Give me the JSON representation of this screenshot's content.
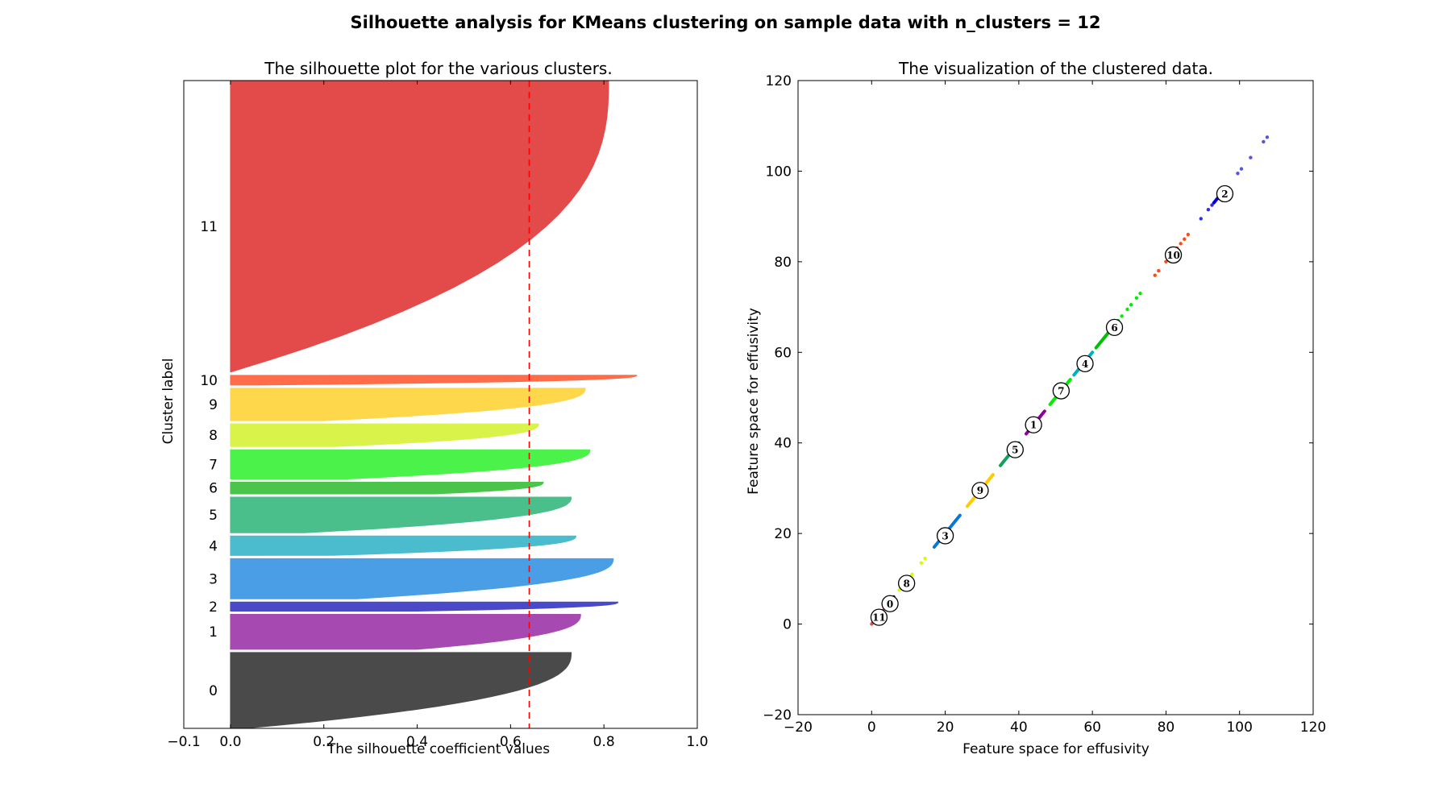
{
  "figure": {
    "title": "Silhouette analysis for KMeans clustering on sample data with n_clusters = 12"
  },
  "chart_data": [
    {
      "type": "area",
      "title": "The silhouette plot for the various clusters.",
      "xlabel": "The silhouette coefficient values",
      "ylabel": "Cluster label",
      "xlim": [
        -0.1,
        1.0
      ],
      "xticks": [
        "−0.1",
        "0.0",
        "0.2",
        "0.4",
        "0.6",
        "0.8",
        "1.0"
      ],
      "yticks": "none",
      "average_silhouette": 0.64,
      "average_line_color": "#ff0000",
      "clusters": [
        {
          "label": "0",
          "band": [
            0.0,
            0.117
          ],
          "max": 0.73,
          "min": 0.03,
          "color": "#4a4a4a"
        },
        {
          "label": "1",
          "band": [
            0.122,
            0.176
          ],
          "max": 0.75,
          "min": 0.4,
          "color": "#a64ab2"
        },
        {
          "label": "2",
          "band": [
            0.181,
            0.195
          ],
          "max": 0.83,
          "min": 0.4,
          "color": "#4a4ac9"
        },
        {
          "label": "3",
          "band": [
            0.2,
            0.262
          ],
          "max": 0.82,
          "min": 0.27,
          "color": "#4a9ee6"
        },
        {
          "label": "4",
          "band": [
            0.267,
            0.297
          ],
          "max": 0.74,
          "min": 0.22,
          "color": "#4abccd"
        },
        {
          "label": "5",
          "band": [
            0.302,
            0.357
          ],
          "max": 0.73,
          "min": 0.16,
          "color": "#4abf8c"
        },
        {
          "label": "6",
          "band": [
            0.362,
            0.38
          ],
          "max": 0.67,
          "min": 0.44,
          "color": "#4ac44a"
        },
        {
          "label": "7",
          "band": [
            0.385,
            0.43
          ],
          "max": 0.77,
          "min": 0.25,
          "color": "#4af24a"
        },
        {
          "label": "8",
          "band": [
            0.435,
            0.47
          ],
          "max": 0.66,
          "min": 0.22,
          "color": "#daf34a"
        },
        {
          "label": "9",
          "band": [
            0.475,
            0.525
          ],
          "max": 0.76,
          "min": 0.2,
          "color": "#fed84a"
        },
        {
          "label": "10",
          "band": [
            0.53,
            0.545
          ],
          "max": 0.87,
          "min": 0.06,
          "color": "#ff6c4a"
        },
        {
          "label": "11",
          "band": [
            0.55,
            1.0
          ],
          "max": 0.81,
          "min": 0.0,
          "color": "#e34a4a"
        }
      ]
    },
    {
      "type": "scatter",
      "title": "The visualization of the clustered data.",
      "xlabel": "Feature space for effusivity",
      "ylabel": "Feature space for effusivity",
      "xlim": [
        -20,
        120
      ],
      "ylim": [
        -20,
        120
      ],
      "xticks": [
        "−20",
        "0",
        "20",
        "40",
        "60",
        "80",
        "100",
        "120"
      ],
      "yticks": [
        "−20",
        "0",
        "20",
        "40",
        "60",
        "80",
        "100",
        "120"
      ],
      "segments": [
        {
          "cluster": "11",
          "x": [
            0,
            3
          ],
          "color": "#e34a4a"
        },
        {
          "cluster": "0",
          "x": [
            4,
            6
          ],
          "color": "#000000"
        },
        {
          "cluster": "8",
          "x": [
            7.5,
            11
          ],
          "color": "#d0ff00"
        },
        {
          "cluster": "3",
          "x": [
            17,
            24
          ],
          "color": "#0a78d0"
        },
        {
          "cluster": "9",
          "x": [
            26,
            33
          ],
          "color": "#ffcc00"
        },
        {
          "cluster": "5",
          "x": [
            35,
            40
          ],
          "color": "#11a060"
        },
        {
          "cluster": "1",
          "x": [
            42,
            47
          ],
          "color": "#8c00a0"
        },
        {
          "cluster": "7",
          "x": [
            48.5,
            54
          ],
          "color": "#00ee00"
        },
        {
          "cluster": "4",
          "x": [
            55,
            60
          ],
          "color": "#00b0c0"
        },
        {
          "cluster": "6",
          "x": [
            61,
            67
          ],
          "color": "#00c000"
        },
        {
          "cluster": "2",
          "x": [
            93,
            96
          ],
          "color": "#0000dd"
        }
      ],
      "points": [
        {
          "x": 13.5,
          "y": 13.5,
          "color": "#d0ff00"
        },
        {
          "x": 14.5,
          "y": 14.5,
          "color": "#d0ff00"
        },
        {
          "x": 68,
          "y": 68,
          "color": "#00ee00"
        },
        {
          "x": 69.5,
          "y": 69.5,
          "color": "#00ee00"
        },
        {
          "x": 70.5,
          "y": 70.5,
          "color": "#00ee00"
        },
        {
          "x": 72,
          "y": 72,
          "color": "#00ee00"
        },
        {
          "x": 73,
          "y": 73,
          "color": "#00ee00"
        },
        {
          "x": 77,
          "y": 77,
          "color": "#ff4a1a"
        },
        {
          "x": 78,
          "y": 78,
          "color": "#ff4a1a"
        },
        {
          "x": 80,
          "y": 80,
          "color": "#ff4a1a"
        },
        {
          "x": 81,
          "y": 81,
          "color": "#ff4a1a"
        },
        {
          "x": 83,
          "y": 83,
          "color": "#ff4a1a"
        },
        {
          "x": 84,
          "y": 84,
          "color": "#ff4a1a"
        },
        {
          "x": 85,
          "y": 85,
          "color": "#ff4a1a"
        },
        {
          "x": 86,
          "y": 86,
          "color": "#ff4a1a"
        },
        {
          "x": 89.5,
          "y": 89.5,
          "color": "#3030e0"
        },
        {
          "x": 91.5,
          "y": 91.5,
          "color": "#3030e0"
        },
        {
          "x": 92.5,
          "y": 92.5,
          "color": "#3030e0"
        },
        {
          "x": 99.5,
          "y": 99.5,
          "color": "#5555dd"
        },
        {
          "x": 100.5,
          "y": 100.5,
          "color": "#5555dd"
        },
        {
          "x": 103,
          "y": 103,
          "color": "#5555dd"
        },
        {
          "x": 106.5,
          "y": 106.5,
          "color": "#5555dd"
        },
        {
          "x": 107.5,
          "y": 107.5,
          "color": "#5555dd"
        }
      ],
      "centers": [
        {
          "label": "11",
          "x": 2,
          "y": 1.5
        },
        {
          "label": "0",
          "x": 5,
          "y": 4.5
        },
        {
          "label": "8",
          "x": 9.5,
          "y": 9
        },
        {
          "label": "3",
          "x": 20,
          "y": 19.5
        },
        {
          "label": "9",
          "x": 29.5,
          "y": 29.5
        },
        {
          "label": "5",
          "x": 39,
          "y": 38.5
        },
        {
          "label": "1",
          "x": 44,
          "y": 44
        },
        {
          "label": "7",
          "x": 51.5,
          "y": 51.5
        },
        {
          "label": "4",
          "x": 58,
          "y": 57.5
        },
        {
          "label": "6",
          "x": 66,
          "y": 65.5
        },
        {
          "label": "10",
          "x": 82,
          "y": 81.5
        },
        {
          "label": "2",
          "x": 96,
          "y": 95
        }
      ]
    }
  ]
}
